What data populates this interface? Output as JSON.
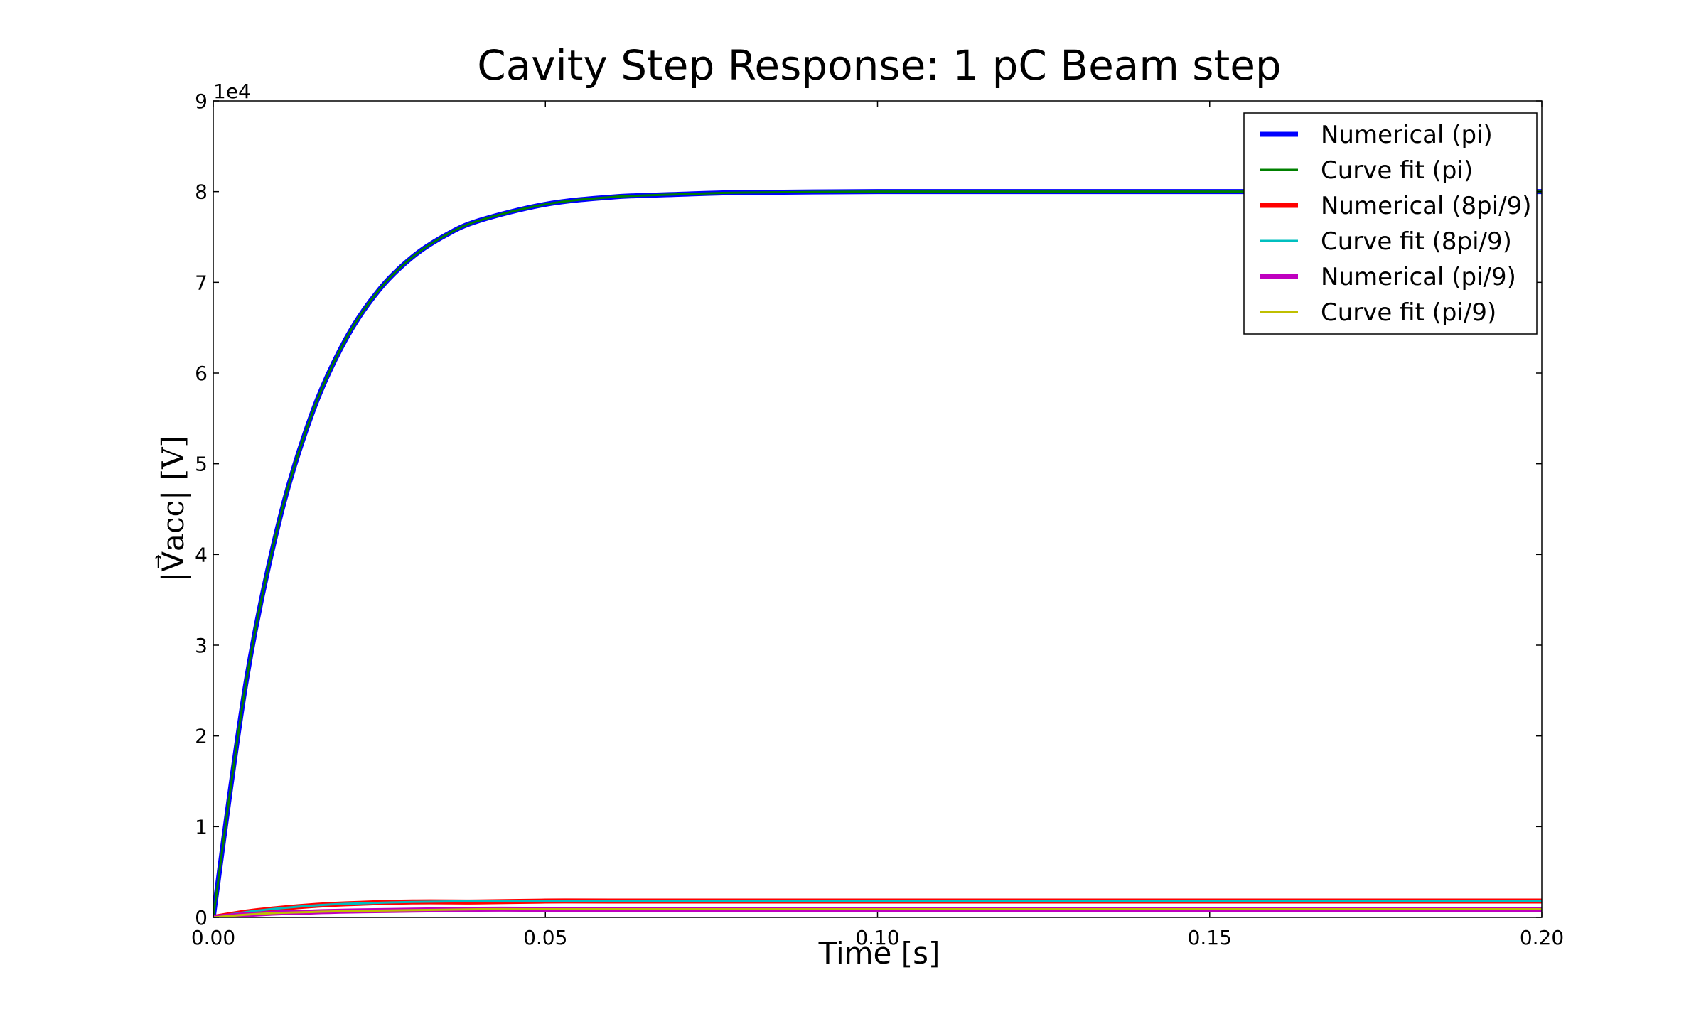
{
  "chart_data": {
    "type": "line",
    "title": "Cavity Step Response: 1 pC Beam step",
    "xlabel": "Time [s]",
    "ylabel": "|V⃗acc| [V]",
    "y_offset_label": "1e4",
    "xlim": [
      0.0,
      0.2
    ],
    "ylim": [
      0,
      9
    ],
    "x_ticks": [
      "0.00",
      "0.05",
      "0.10",
      "0.15",
      "0.20"
    ],
    "y_ticks": [
      "0",
      "1",
      "2",
      "3",
      "4",
      "5",
      "6",
      "7",
      "8",
      "9"
    ],
    "grid": false,
    "legend_position": "top-right",
    "series": [
      {
        "name": "Numerical (pi)",
        "color": "#0000ff",
        "style": "thick",
        "x": [
          0.0,
          0.005,
          0.01,
          0.015,
          0.02,
          0.025,
          0.03,
          0.035,
          0.04,
          0.05,
          0.06,
          0.07,
          0.08,
          0.1,
          0.12,
          0.15,
          0.2
        ],
        "values": [
          0.0,
          2.62,
          4.39,
          5.58,
          6.38,
          6.92,
          7.28,
          7.52,
          7.68,
          7.86,
          7.94,
          7.97,
          7.99,
          8.0,
          8.0,
          8.0,
          8.0
        ]
      },
      {
        "name": "Curve fit (pi)",
        "color": "#008000",
        "style": "thin",
        "x": [
          0.0,
          0.005,
          0.01,
          0.015,
          0.02,
          0.025,
          0.03,
          0.035,
          0.04,
          0.05,
          0.06,
          0.07,
          0.08,
          0.1,
          0.12,
          0.15,
          0.2
        ],
        "values": [
          0.0,
          2.62,
          4.39,
          5.58,
          6.38,
          6.92,
          7.28,
          7.52,
          7.68,
          7.86,
          7.94,
          7.97,
          7.99,
          8.0,
          8.0,
          8.0,
          8.0
        ]
      },
      {
        "name": "Numerical (8pi/9)",
        "color": "#ff0000",
        "style": "thick",
        "x": [
          0.0,
          0.005,
          0.01,
          0.015,
          0.02,
          0.03,
          0.04,
          0.05,
          0.06,
          0.08,
          0.1,
          0.15,
          0.2
        ],
        "values": [
          0.0,
          0.06,
          0.1,
          0.13,
          0.15,
          0.17,
          0.17,
          0.18,
          0.18,
          0.18,
          0.18,
          0.18,
          0.18
        ]
      },
      {
        "name": "Curve fit (8pi/9)",
        "color": "#00bfbf",
        "style": "thin",
        "x": [
          0.0,
          0.005,
          0.01,
          0.015,
          0.02,
          0.03,
          0.04,
          0.05,
          0.06,
          0.08,
          0.1,
          0.15,
          0.2
        ],
        "values": [
          0.0,
          0.06,
          0.1,
          0.13,
          0.15,
          0.17,
          0.18,
          0.18,
          0.18,
          0.18,
          0.18,
          0.18,
          0.18
        ]
      },
      {
        "name": "Numerical (pi/9)",
        "color": "#bf00bf",
        "style": "thick",
        "x": [
          0.0,
          0.005,
          0.01,
          0.015,
          0.02,
          0.03,
          0.04,
          0.05,
          0.06,
          0.08,
          0.1,
          0.15,
          0.2
        ],
        "values": [
          0.0,
          0.03,
          0.05,
          0.06,
          0.07,
          0.08,
          0.09,
          0.09,
          0.09,
          0.09,
          0.09,
          0.09,
          0.09
        ]
      },
      {
        "name": "Curve fit (pi/9)",
        "color": "#bfbf00",
        "style": "thin",
        "x": [
          0.0,
          0.005,
          0.01,
          0.015,
          0.02,
          0.03,
          0.04,
          0.05,
          0.06,
          0.08,
          0.1,
          0.15,
          0.2
        ],
        "values": [
          0.0,
          0.03,
          0.05,
          0.06,
          0.07,
          0.08,
          0.09,
          0.09,
          0.09,
          0.09,
          0.09,
          0.09,
          0.09
        ]
      }
    ]
  }
}
